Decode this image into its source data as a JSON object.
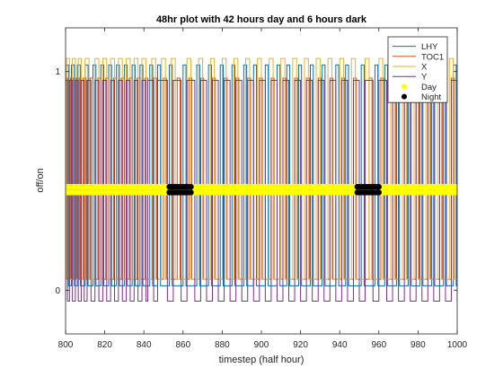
{
  "chart_data": {
    "type": "line",
    "title": "48hr plot with 42 hours day and 6 hours dark",
    "xlabel": "timestep (half hour)",
    "ylabel": "off/on",
    "xlim": [
      800,
      1000
    ],
    "ylim": [
      -0.2,
      1.2
    ],
    "x_ticks": [
      800,
      820,
      840,
      860,
      880,
      900,
      920,
      940,
      960,
      980,
      1000
    ],
    "y_ticks": [
      0,
      1
    ],
    "grid": false,
    "legend_position": "top-right",
    "series": [
      {
        "name": "LHY",
        "color": "#0072BD",
        "kind": "step",
        "levels": [
          0.02,
          1.03
        ],
        "transitions": [
          800,
          801.5,
          803,
          804.5,
          806,
          807.5,
          810,
          811.5,
          814,
          815.5,
          818,
          819.5,
          822,
          823.5,
          826,
          827.5,
          830,
          831.5,
          834,
          835.5,
          838,
          839.5,
          843,
          844.5,
          847,
          848.5,
          853,
          854.5,
          860,
          861.5,
          867,
          868.5,
          873,
          874.5,
          879,
          880.5,
          885,
          886.5,
          891,
          892.5,
          896,
          897.5,
          902,
          903.5,
          908,
          909.5,
          913,
          914.5,
          919,
          920.5,
          925,
          926.5,
          931,
          932.5,
          938,
          939.5,
          943,
          944.5,
          951,
          952.5,
          958,
          959.5,
          963,
          964.5,
          969,
          970.5,
          975,
          976.5,
          981,
          982.5,
          987,
          988.5,
          993,
          994.5,
          998,
          999.5
        ]
      },
      {
        "name": "TOC1",
        "color": "#D95319",
        "kind": "step",
        "levels": [
          0.05,
          0.97
        ],
        "transitions": [
          800,
          801,
          802.5,
          804,
          805.5,
          807,
          809,
          810.5,
          812.5,
          814,
          816.5,
          818,
          820.5,
          822,
          824.5,
          826,
          828.5,
          830,
          832.5,
          834,
          836.5,
          838,
          840.5,
          842,
          845,
          846.5,
          850,
          851.5,
          857,
          858.5,
          863,
          864.5,
          869,
          870.5,
          875,
          876.5,
          881,
          882.5,
          887,
          888.5,
          893,
          894.5,
          899,
          900.5,
          905,
          906.5,
          911,
          912.5,
          917,
          918.5,
          923,
          924.5,
          929,
          930.5,
          935,
          936.5,
          941,
          942.5,
          947,
          948.5,
          955,
          956.5,
          961,
          962.5,
          967,
          968.5,
          973,
          974.5,
          979,
          980.5,
          985,
          986.5,
          991,
          992.5,
          997,
          998.5
        ]
      },
      {
        "name": "X",
        "color": "#EDB120",
        "kind": "step",
        "levels": [
          0.05,
          1.06
        ],
        "transitions": [
          800.5,
          802,
          803.5,
          805,
          806.5,
          808,
          810,
          812,
          815,
          817,
          819,
          821,
          823,
          825,
          827,
          829,
          831,
          833,
          835,
          837,
          839,
          841,
          844,
          846,
          849,
          851,
          854,
          856,
          862,
          864,
          868,
          870,
          874,
          876,
          880,
          882,
          886,
          888,
          892,
          894,
          898,
          900,
          904,
          906,
          910,
          912,
          916,
          918,
          922,
          924,
          928,
          930,
          934,
          936,
          940,
          942,
          946,
          948,
          953,
          955,
          960,
          962,
          966,
          968,
          972,
          974,
          978,
          980,
          984,
          986,
          990,
          992,
          996,
          998
        ]
      },
      {
        "name": "Y",
        "color": "#7E2F8E",
        "kind": "step",
        "levels": [
          -0.05,
          0.96
        ],
        "transitions": [
          800,
          801,
          802,
          803.5,
          805,
          806.5,
          808,
          809.5,
          811,
          813,
          815,
          817,
          819,
          821,
          823,
          825,
          827,
          829,
          831,
          833,
          835,
          837,
          839,
          841,
          842,
          845,
          847,
          852,
          855,
          859,
          862,
          866,
          869,
          872,
          875,
          878,
          881,
          884,
          887,
          890,
          893,
          896,
          899,
          902,
          905,
          908,
          911,
          914,
          917,
          920,
          923,
          926,
          929,
          932,
          935,
          938,
          941,
          944,
          947,
          950,
          953,
          957,
          960,
          964,
          967,
          970,
          973,
          976,
          979,
          982,
          985,
          988,
          991,
          994,
          997,
          1000
        ]
      }
    ],
    "day_night": [
      {
        "name": "Day",
        "color": "#FFFF00",
        "rows_y": [
          0.473,
          0.447
        ],
        "ranges": [
          [
            800,
            852
          ],
          [
            865,
            948
          ],
          [
            961,
            1000
          ]
        ]
      },
      {
        "name": "Night",
        "color": "#000000",
        "rows_y": [
          0.473,
          0.447
        ],
        "ranges": [
          [
            853,
            864
          ],
          [
            949,
            960
          ]
        ]
      }
    ]
  }
}
